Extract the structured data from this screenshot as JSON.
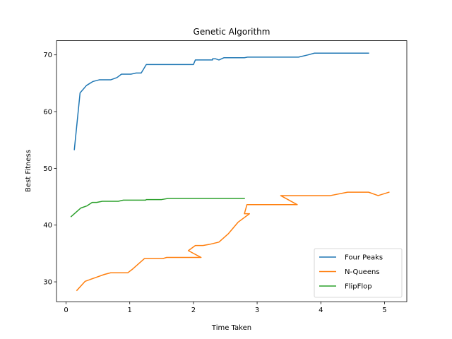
{
  "chart_data": {
    "type": "line",
    "title": "Genetic Algorithm",
    "xlabel": "Time Taken",
    "ylabel": "Best Fitness",
    "xlim": [
      -0.15,
      5.35
    ],
    "ylim": [
      26.5,
      72.5
    ],
    "xticks": [
      0,
      1,
      2,
      3,
      4,
      5
    ],
    "yticks": [
      30,
      40,
      50,
      60,
      70
    ],
    "grid": false,
    "legend_position": "bottom-right",
    "series": [
      {
        "name": "Four Peaks",
        "color": "#1f77b4",
        "points": [
          [
            0.13,
            53.3
          ],
          [
            0.22,
            63.3
          ],
          [
            0.32,
            64.6
          ],
          [
            0.42,
            65.3
          ],
          [
            0.52,
            65.6
          ],
          [
            0.6,
            65.6
          ],
          [
            0.7,
            65.6
          ],
          [
            0.8,
            66.0
          ],
          [
            0.87,
            66.6
          ],
          [
            0.95,
            66.6
          ],
          [
            1.02,
            66.6
          ],
          [
            1.1,
            66.8
          ],
          [
            1.18,
            66.8
          ],
          [
            1.26,
            68.3
          ],
          [
            1.4,
            68.3
          ],
          [
            1.6,
            68.3
          ],
          [
            1.8,
            68.3
          ],
          [
            1.9,
            68.3
          ],
          [
            2.0,
            68.3
          ],
          [
            2.03,
            69.1
          ],
          [
            2.2,
            69.1
          ],
          [
            2.3,
            69.1
          ],
          [
            2.3,
            69.3
          ],
          [
            2.35,
            69.3
          ],
          [
            2.4,
            69.1
          ],
          [
            2.48,
            69.5
          ],
          [
            2.65,
            69.5
          ],
          [
            2.8,
            69.5
          ],
          [
            2.85,
            69.6
          ],
          [
            3.0,
            69.6
          ],
          [
            3.3,
            69.6
          ],
          [
            3.45,
            69.6
          ],
          [
            3.6,
            69.6
          ],
          [
            3.65,
            69.6
          ],
          [
            3.8,
            70.0
          ],
          [
            3.9,
            70.3
          ],
          [
            4.1,
            70.3
          ],
          [
            4.3,
            70.3
          ],
          [
            4.5,
            70.3
          ],
          [
            4.75,
            70.3
          ]
        ]
      },
      {
        "name": "N-Queens",
        "color": "#ff7f0e",
        "points": [
          [
            0.17,
            28.5
          ],
          [
            0.3,
            30.1
          ],
          [
            0.45,
            30.7
          ],
          [
            0.6,
            31.3
          ],
          [
            0.7,
            31.6
          ],
          [
            0.85,
            31.6
          ],
          [
            0.97,
            31.6
          ],
          [
            1.05,
            32.3
          ],
          [
            1.15,
            33.3
          ],
          [
            1.23,
            34.1
          ],
          [
            1.4,
            34.1
          ],
          [
            1.52,
            34.1
          ],
          [
            1.58,
            34.3
          ],
          [
            1.75,
            34.3
          ],
          [
            1.95,
            34.3
          ],
          [
            2.12,
            34.3
          ],
          [
            1.92,
            35.5
          ],
          [
            2.03,
            36.4
          ],
          [
            2.15,
            36.4
          ],
          [
            2.25,
            36.6
          ],
          [
            2.4,
            37.0
          ],
          [
            2.55,
            38.5
          ],
          [
            2.7,
            40.5
          ],
          [
            2.88,
            42.0
          ],
          [
            2.8,
            42.0
          ],
          [
            2.84,
            43.6
          ],
          [
            3.0,
            43.6
          ],
          [
            3.2,
            43.6
          ],
          [
            3.45,
            43.6
          ],
          [
            3.63,
            43.6
          ],
          [
            3.37,
            45.2
          ],
          [
            3.6,
            45.2
          ],
          [
            3.85,
            45.2
          ],
          [
            4.0,
            45.2
          ],
          [
            4.15,
            45.2
          ],
          [
            4.42,
            45.8
          ],
          [
            4.6,
            45.8
          ],
          [
            4.75,
            45.8
          ],
          [
            4.9,
            45.2
          ],
          [
            5.07,
            45.8
          ]
        ]
      },
      {
        "name": "FlipFlop",
        "color": "#2ca02c",
        "points": [
          [
            0.08,
            41.5
          ],
          [
            0.15,
            42.2
          ],
          [
            0.23,
            43.0
          ],
          [
            0.33,
            43.4
          ],
          [
            0.41,
            44.0
          ],
          [
            0.48,
            44.0
          ],
          [
            0.57,
            44.2
          ],
          [
            0.7,
            44.2
          ],
          [
            0.82,
            44.2
          ],
          [
            0.9,
            44.4
          ],
          [
            1.0,
            44.4
          ],
          [
            1.1,
            44.4
          ],
          [
            1.25,
            44.4
          ],
          [
            1.26,
            44.5
          ],
          [
            1.4,
            44.5
          ],
          [
            1.5,
            44.5
          ],
          [
            1.6,
            44.7
          ],
          [
            1.8,
            44.7
          ],
          [
            2.0,
            44.7
          ],
          [
            2.25,
            44.7
          ],
          [
            2.45,
            44.7
          ],
          [
            2.6,
            44.7
          ],
          [
            2.8,
            44.7
          ]
        ]
      }
    ]
  }
}
